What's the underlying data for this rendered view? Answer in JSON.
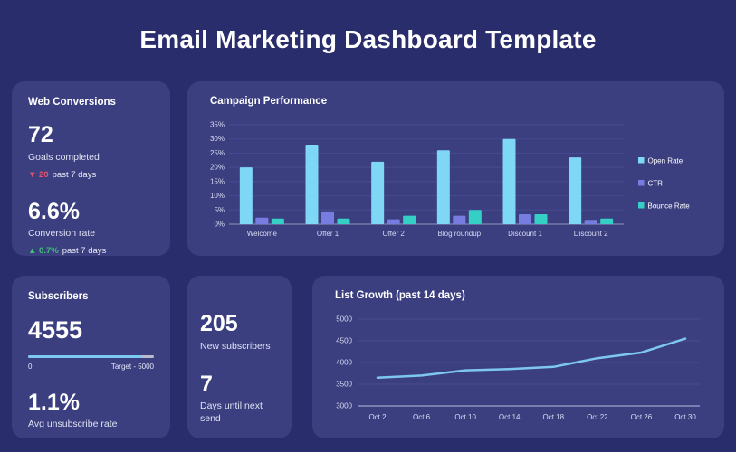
{
  "header": {
    "title": "Email Marketing Dashboard Template"
  },
  "colors": {
    "page_bg": "#2a2d6b",
    "card_bg": "#3b3f80",
    "open_rate_blue": "#7ed7f5",
    "ctr_purple": "#777ce0",
    "bounce_teal": "#35cfc6",
    "line_blue": "#7ec8f0",
    "negative_red": "#e4556a",
    "positive_green": "#3fbf77",
    "progress_fill_blue": "#7ec9f2",
    "progress_track_gray": "#b9bbcd"
  },
  "cards": {
    "web_conversions": {
      "title": "Web Conversions",
      "goals_value": "72",
      "goals_label": "Goals completed",
      "goals_delta_icon": "▼",
      "goals_delta_value": "20",
      "goals_delta_suffix": "past 7 days",
      "rate_value": "6.6%",
      "rate_label": "Conversion rate",
      "rate_delta_icon": "▲",
      "rate_delta_value": "0.7%",
      "rate_delta_suffix": "past 7 days"
    },
    "subscribers": {
      "title": "Subscribers",
      "count": "4555",
      "progress_pct": 91,
      "progress_min_label": "0",
      "progress_target_label": "Target - 5000",
      "unsub_value": "1.1%",
      "unsub_label": "Avg unsubscribe rate"
    },
    "quick_stats": {
      "new_subs_value": "205",
      "new_subs_label": "New subscribers",
      "days_value": "7",
      "days_label": "Days until next send"
    }
  },
  "chart_data": [
    {
      "type": "bar",
      "title": "Campaign Performance",
      "categories": [
        "Welcome",
        "Offer 1",
        "Offer 2",
        "Blog roundup",
        "Discount 1",
        "Discount 2"
      ],
      "series": [
        {
          "name": "Open Rate",
          "color": "#7ed7f5",
          "values": [
            20,
            28,
            22,
            26,
            30,
            23.5
          ]
        },
        {
          "name": "CTR",
          "color": "#777ce0",
          "values": [
            2.3,
            4.5,
            1.7,
            3,
            3.5,
            1.5
          ]
        },
        {
          "name": "Bounce Rate",
          "color": "#35cfc6",
          "values": [
            2,
            2,
            3,
            5,
            3.5,
            2
          ]
        }
      ],
      "xlabel": "",
      "ylabel": "",
      "ylim": [
        0,
        35
      ],
      "ytick_step": 5,
      "ytick_suffix": "%",
      "grid": true,
      "legend_position": "right"
    },
    {
      "type": "line",
      "title": "List Growth (past 14 days)",
      "x": [
        "Oct 2",
        "Oct 6",
        "Oct 10",
        "Oct 14",
        "Oct 18",
        "Oct 22",
        "Oct 26",
        "Oct 30"
      ],
      "values": [
        3650,
        3700,
        3820,
        3850,
        3900,
        4100,
        4230,
        4550
      ],
      "color": "#7ec8f0",
      "xlabel": "",
      "ylabel": "",
      "ylim": [
        3000,
        5000
      ],
      "ytick_step": 500,
      "grid": true,
      "legend_position": "none"
    }
  ]
}
